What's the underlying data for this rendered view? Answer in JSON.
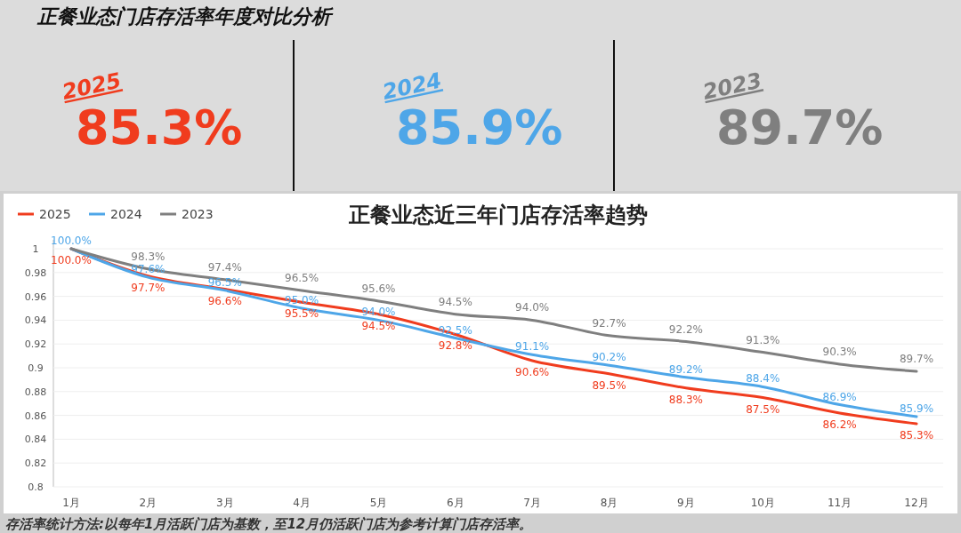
{
  "chart_data": [
    {
      "type": "other",
      "title": "正餐业态门店存活率年度对比分析",
      "annotations": [
        "2025",
        "85.3%",
        "2024",
        "85.9%",
        "2023",
        "89.7%"
      ],
      "colors": [
        "#f03c1e",
        "#4ea6e8",
        "#7f7f7f"
      ]
    },
    {
      "type": "line",
      "title": "正餐业态近三年门店存活率趋势",
      "categories": [
        "1月",
        "2月",
        "3月",
        "4月",
        "5月",
        "6月",
        "7月",
        "8月",
        "9月",
        "10月",
        "11月",
        "12月"
      ],
      "series": [
        {
          "name": "2025",
          "color": "#f03c1e",
          "values": [
            1.0,
            0.977,
            0.966,
            0.955,
            0.945,
            0.928,
            0.906,
            0.895,
            0.883,
            0.875,
            0.862,
            0.853
          ],
          "value_labels": [
            "100.0%",
            "97.7%",
            "96.6%",
            "95.5%",
            "94.5%",
            "92.8%",
            "90.6%",
            "89.5%",
            "88.3%",
            "87.5%",
            "86.2%",
            "85.3%"
          ]
        },
        {
          "name": "2024",
          "color": "#4ea6e8",
          "values": [
            1.0,
            0.976,
            0.965,
            0.95,
            0.94,
            0.925,
            0.911,
            0.902,
            0.892,
            0.884,
            0.869,
            0.859
          ],
          "value_labels": [
            "100.0%",
            "97.6%",
            "96.5%",
            "95.0%",
            "94.0%",
            "92.5%",
            "91.1%",
            "90.2%",
            "89.2%",
            "88.4%",
            "86.9%",
            "85.9%"
          ]
        },
        {
          "name": "2023",
          "color": "#7f7f7f",
          "values": [
            1.0,
            0.983,
            0.974,
            0.965,
            0.956,
            0.945,
            0.94,
            0.927,
            0.922,
            0.913,
            0.903,
            0.897
          ],
          "value_labels": [
            null,
            "98.3%",
            "97.4%",
            "96.5%",
            "95.6%",
            "94.5%",
            "94.0%",
            "92.7%",
            "92.2%",
            "91.3%",
            "90.3%",
            "89.7%"
          ]
        }
      ],
      "ylim": [
        0.8,
        1
      ],
      "yticks": [
        0.8,
        0.82,
        0.84,
        0.86,
        0.88,
        0.9,
        0.92,
        0.94,
        0.96,
        0.98,
        1
      ],
      "grid": "y",
      "legend": "top left",
      "annotations": [
        "存活率统计方法:以每年1月活跃门店为基数，至12月仍活跃门店为参考计算门店存活率。"
      ]
    }
  ]
}
